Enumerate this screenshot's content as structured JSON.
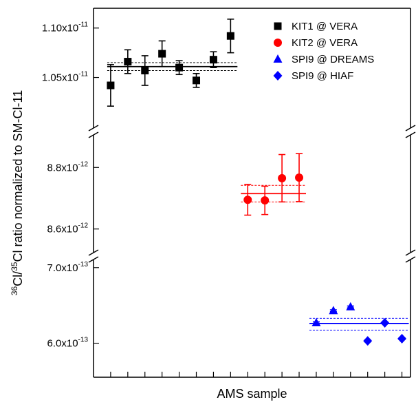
{
  "chart_data": {
    "type": "scatter",
    "xlabel": "AMS sample",
    "ylabel": {
      "parts": [
        {
          "text": "36",
          "sup": true
        },
        {
          "text": "Cl/",
          "sup": false
        },
        {
          "text": "35",
          "sup": true
        },
        {
          "text": "Cl ratio normalized to SM-Cl-11",
          "sup": false
        }
      ]
    },
    "y_axis_type": "broken",
    "segments": [
      {
        "id": "top",
        "ylim": [
          1.01e-11,
          1.12e-11
        ],
        "ticks": [
          {
            "value": 1.1e-11,
            "mant": "1.10x10",
            "exp": "-11"
          },
          {
            "value": 1.05e-11,
            "mant": "1.05x10",
            "exp": "-11"
          }
        ]
      },
      {
        "id": "middle",
        "ylim": [
          8.55e-12,
          8.87e-12
        ],
        "ticks": [
          {
            "value": 8.8e-12,
            "mant": "8.8x10",
            "exp": "-12"
          },
          {
            "value": 8.6e-12,
            "mant": "8.6x10",
            "exp": "-12"
          }
        ]
      },
      {
        "id": "bottom",
        "ylim": [
          5.55e-13,
          7.08e-13
        ],
        "ticks": [
          {
            "value": 7e-13,
            "mant": "7.0x10",
            "exp": "-13"
          },
          {
            "value": 6e-13,
            "mant": "6.0x10",
            "exp": "-13"
          }
        ]
      }
    ],
    "x_ticks": [
      1,
      2,
      3,
      4,
      5,
      6,
      7,
      8,
      9,
      10,
      11,
      12,
      13,
      14,
      15,
      16,
      17,
      18
    ],
    "xlim": [
      0,
      18.5
    ],
    "series": [
      {
        "name": "KIT1 @ VERA",
        "color": "#000000",
        "marker": "square",
        "segment": "top",
        "points": [
          {
            "x": 1,
            "y": 1.042e-11,
            "err": 2.1e-13
          },
          {
            "x": 2,
            "y": 1.066e-11,
            "err": 1.2e-13
          },
          {
            "x": 3,
            "y": 1.057e-11,
            "err": 1.5e-13
          },
          {
            "x": 4,
            "y": 1.074e-11,
            "err": 1.3e-13
          },
          {
            "x": 5,
            "y": 1.06e-11,
            "err": 7e-14
          },
          {
            "x": 6,
            "y": 1.047e-11,
            "err": 7e-14
          },
          {
            "x": 7,
            "y": 1.068e-11,
            "err": 8e-14
          },
          {
            "x": 8,
            "y": 1.092e-11,
            "err": 1.7e-13
          }
        ],
        "mean": {
          "value": 1.061e-11,
          "band": [
            1.057e-11,
            1.065e-11
          ],
          "x_range": [
            0.8,
            8.4
          ]
        }
      },
      {
        "name": "KIT2 @ VERA",
        "color": "#ff0000",
        "marker": "circle",
        "segment": "middle",
        "points": [
          {
            "x": 9,
            "y": 8.695e-12,
            "err": 5e-14
          },
          {
            "x": 10,
            "y": 8.693e-12,
            "err": 4.6e-14
          },
          {
            "x": 11,
            "y": 8.765e-12,
            "err": 7.7e-14
          },
          {
            "x": 12,
            "y": 8.767e-12,
            "err": 7.8e-14
          }
        ],
        "mean": {
          "value": 8.715e-12,
          "band": [
            8.688e-12,
            8.742e-12
          ],
          "x_range": [
            8.6,
            12.4
          ]
        }
      },
      {
        "name": "SPI9 @ DREAMS",
        "color": "#0000ff",
        "marker": "triangle",
        "segment": "bottom",
        "points": [
          {
            "x": 13,
            "y": 6.27e-13,
            "err": 1.2e-15
          },
          {
            "x": 14,
            "y": 6.43e-13,
            "err": 1.2e-15
          },
          {
            "x": 15,
            "y": 6.48e-13,
            "err": 1.2e-15
          }
        ]
      },
      {
        "name": "SPI9 @ HIAF",
        "color": "#0000ff",
        "marker": "diamond",
        "segment": "bottom",
        "points": [
          {
            "x": 16,
            "y": 6.03e-13,
            "err": 1e-15
          },
          {
            "x": 17,
            "y": 6.27e-13,
            "err": 1e-15
          },
          {
            "x": 18,
            "y": 6.06e-13,
            "err": 1e-15
          }
        ]
      }
    ],
    "combined_means": [
      {
        "color": "#0000ff",
        "value": 6.26e-13,
        "band": [
          6.17e-13,
          6.33e-13
        ],
        "x_range": [
          12.6,
          18.4
        ]
      }
    ],
    "legend": {
      "position": "top-right"
    },
    "grid": false
  }
}
